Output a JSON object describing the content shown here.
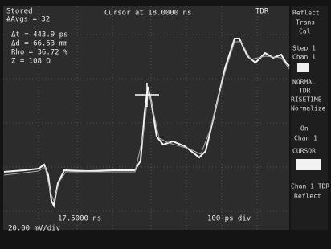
{
  "header": {
    "mode": "Stored",
    "averages": "#Avgs = 32",
    "cursor": "Cursor at 18.0000 ns",
    "function": "TDR"
  },
  "measurements": [
    "Δt = 443.9 ps",
    "Δd = 66.53 mm",
    "Rho = 36.72 %",
    "Z = 108 Ω"
  ],
  "menu": [
    "Reflect",
    "Trans",
    "Cal",
    "Step 1",
    "Chan 1",
    "NORMAL",
    "TDR",
    "RISETIME",
    "Normalize",
    "On",
    "Chan 1",
    "CURSOR",
    "Chan 1 TDR",
    "Reflect"
  ],
  "footer": {
    "start": "17.5000 ns",
    "timebase": "100 ps div",
    "scale": "20.00 mV/div"
  }
}
